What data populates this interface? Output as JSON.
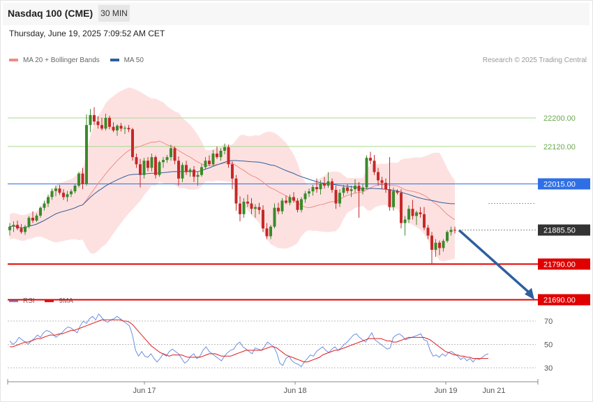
{
  "header": {
    "instrument": "Nasdaq 100 (CME)",
    "timeframe": "30 MIN",
    "timestamp": "Thursday, June 19, 2025 7:09:52 AM CET"
  },
  "legend": {
    "price": [
      {
        "label": "MA 20 + Bollinger Bands",
        "color": "#f28b82"
      },
      {
        "label": "MA 50",
        "color": "#2e5f9e"
      }
    ],
    "rsi": [
      {
        "label": "RSI",
        "color": "#6b8fe0"
      },
      {
        "label": "9MA",
        "color": "#e31a1c"
      }
    ]
  },
  "copyright": "Research © 2025 Trading Central",
  "colors": {
    "bull": "#3a8a2a",
    "bear": "#c62828",
    "bands_fill": "#fde1e1",
    "ma20": "#f28b82",
    "ma50": "#2e5f9e",
    "resistance": "#a6d98c",
    "support": "#e00000",
    "pivot": "#2f6fe6",
    "last": "#333333",
    "arrow": "#2e5f9e",
    "rsi": "#6b8fe0",
    "rsi_ma": "#e31a1c"
  },
  "chart_data": [
    {
      "type": "candlestick",
      "ylim": [
        21640,
        22290
      ],
      "x_ticks": [
        "Jun 17",
        "Jun 18",
        "Jun 19",
        "Jun 21"
      ],
      "levels": [
        {
          "label": "22200.00",
          "value": 22200,
          "role": "resistance"
        },
        {
          "label": "22120.00",
          "value": 22120,
          "role": "resistance"
        },
        {
          "label": "22015.00",
          "value": 22015,
          "role": "pivot"
        },
        {
          "label": "21885.50",
          "value": 21885.5,
          "role": "last"
        },
        {
          "label": "21790.00",
          "value": 21790,
          "role": "support"
        },
        {
          "label": "21690.00",
          "value": 21690,
          "role": "support"
        }
      ],
      "forecast": {
        "from": 21885,
        "to": 21690,
        "direction": "down"
      },
      "ohlc": [
        [
          21885,
          21905,
          21870,
          21895
        ],
        [
          21895,
          21910,
          21880,
          21900
        ],
        [
          21900,
          21912,
          21885,
          21890
        ],
        [
          21890,
          21902,
          21875,
          21880
        ],
        [
          21880,
          21900,
          21872,
          21895
        ],
        [
          21895,
          21925,
          21890,
          21920
        ],
        [
          21920,
          21938,
          21905,
          21912
        ],
        [
          21912,
          21932,
          21908,
          21926
        ],
        [
          21926,
          21952,
          21920,
          21948
        ],
        [
          21948,
          21968,
          21940,
          21960
        ],
        [
          21960,
          21985,
          21950,
          21978
        ],
        [
          21978,
          22002,
          21970,
          21995
        ],
        [
          21995,
          22010,
          21980,
          22002
        ],
        [
          22002,
          22012,
          21984,
          21990
        ],
        [
          21990,
          22000,
          21970,
          21978
        ],
        [
          21978,
          21995,
          21965,
          21986
        ],
        [
          21986,
          22000,
          21978,
          21994
        ],
        [
          21994,
          22015,
          21988,
          22010
        ],
        [
          22010,
          22048,
          22005,
          22044
        ],
        [
          22044,
          22060,
          22000,
          22015
        ],
        [
          22015,
          22210,
          22010,
          22180
        ],
        [
          22180,
          22225,
          22160,
          22208
        ],
        [
          22208,
          22230,
          22180,
          22190
        ],
        [
          22190,
          22205,
          22170,
          22180
        ],
        [
          22180,
          22200,
          22165,
          22170
        ],
        [
          22170,
          22212,
          22165,
          22200
        ],
        [
          22200,
          22206,
          22168,
          22175
        ],
        [
          22175,
          22188,
          22160,
          22165
        ],
        [
          22165,
          22182,
          22150,
          22178
        ],
        [
          22178,
          22186,
          22162,
          22170
        ],
        [
          22170,
          22178,
          22155,
          22172
        ],
        [
          22172,
          22180,
          22160,
          22168
        ],
        [
          22168,
          22172,
          22080,
          22090
        ],
        [
          22090,
          22100,
          22060,
          22070
        ],
        [
          22070,
          22085,
          22005,
          22040
        ],
        [
          22040,
          22088,
          22030,
          22080
        ],
        [
          22080,
          22090,
          22050,
          22060
        ],
        [
          22060,
          22100,
          22050,
          22090
        ],
        [
          22090,
          22095,
          22030,
          22040
        ],
        [
          22040,
          22080,
          22035,
          22076
        ],
        [
          22076,
          22090,
          22060,
          22082
        ],
        [
          22082,
          22096,
          22074,
          22090
        ],
        [
          22090,
          22125,
          22080,
          22115
        ],
        [
          22115,
          22120,
          22070,
          22080
        ],
        [
          22080,
          22092,
          22010,
          22030
        ],
        [
          22030,
          22075,
          22020,
          22068
        ],
        [
          22068,
          22080,
          22040,
          22048
        ],
        [
          22048,
          22060,
          22035,
          22055
        ],
        [
          22055,
          22065,
          22020,
          22035
        ],
        [
          22035,
          22050,
          22010,
          22040
        ],
        [
          22040,
          22070,
          22035,
          22062
        ],
        [
          22062,
          22090,
          22055,
          22080
        ],
        [
          22080,
          22095,
          22065,
          22070
        ],
        [
          22070,
          22110,
          22065,
          22100
        ],
        [
          22100,
          22120,
          22085,
          22090
        ],
        [
          22090,
          22115,
          22080,
          22108
        ],
        [
          22108,
          22128,
          22098,
          22118
        ],
        [
          22118,
          22125,
          22060,
          22070
        ],
        [
          22070,
          22078,
          22000,
          22030
        ],
        [
          22030,
          22040,
          21940,
          21960
        ],
        [
          21960,
          21980,
          21910,
          21930
        ],
        [
          21930,
          21975,
          21920,
          21965
        ],
        [
          21965,
          21985,
          21950,
          21960
        ],
        [
          21960,
          21975,
          21930,
          21945
        ],
        [
          21945,
          21958,
          21920,
          21950
        ],
        [
          21950,
          21962,
          21930,
          21942
        ],
        [
          21942,
          21955,
          21880,
          21890
        ],
        [
          21890,
          21905,
          21860,
          21868
        ],
        [
          21868,
          21900,
          21860,
          21895
        ],
        [
          21895,
          21960,
          21890,
          21948
        ],
        [
          21948,
          21962,
          21930,
          21938
        ],
        [
          21938,
          21975,
          21930,
          21968
        ],
        [
          21968,
          21982,
          21958,
          21962
        ],
        [
          21962,
          21985,
          21955,
          21978
        ],
        [
          21978,
          21992,
          21962,
          21968
        ],
        [
          21968,
          21975,
          21935,
          21942
        ],
        [
          21942,
          21978,
          21935,
          21972
        ],
        [
          21972,
          21995,
          21962,
          21988
        ],
        [
          21988,
          22002,
          21978,
          21994
        ],
        [
          21994,
          22012,
          21982,
          22006
        ],
        [
          22006,
          22030,
          21990,
          22000
        ],
        [
          22000,
          22025,
          21985,
          22016
        ],
        [
          22016,
          22034,
          22002,
          22010
        ],
        [
          22010,
          22048,
          22004,
          22022
        ],
        [
          22022,
          22030,
          21990,
          21998
        ],
        [
          21998,
          22010,
          21945,
          21960
        ],
        [
          21960,
          22000,
          21950,
          21990
        ],
        [
          21990,
          22012,
          21980,
          22005
        ],
        [
          22005,
          22015,
          21988,
          21995
        ],
        [
          21995,
          22010,
          21978,
          22000
        ],
        [
          22000,
          22028,
          21990,
          22010
        ],
        [
          22010,
          22020,
          21920,
          21995
        ],
        [
          21995,
          22015,
          21985,
          22005
        ],
        [
          22005,
          22095,
          22000,
          22088
        ],
        [
          22088,
          22105,
          22070,
          22080
        ],
        [
          22080,
          22096,
          22040,
          22048
        ],
        [
          22048,
          22060,
          22010,
          22025
        ],
        [
          22025,
          22035,
          22000,
          22018
        ],
        [
          22018,
          22030,
          21990,
          22000
        ],
        [
          22000,
          22090,
          21940,
          21950
        ],
        [
          21950,
          22005,
          21940,
          21995
        ],
        [
          21995,
          22000,
          21985,
          21990
        ],
        [
          21990,
          22000,
          21890,
          21905
        ],
        [
          21905,
          21925,
          21870,
          21915
        ],
        [
          21915,
          21955,
          21905,
          21945
        ],
        [
          21945,
          21970,
          21915,
          21925
        ],
        [
          21925,
          21940,
          21900,
          21935
        ],
        [
          21935,
          21950,
          21920,
          21930
        ],
        [
          21930,
          21950,
          21885,
          21892
        ],
        [
          21892,
          21900,
          21860,
          21870
        ],
        [
          21870,
          21880,
          21790,
          21830
        ],
        [
          21830,
          21860,
          21810,
          21850
        ],
        [
          21850,
          21856,
          21815,
          21835
        ],
        [
          21835,
          21860,
          21825,
          21855
        ],
        [
          21855,
          21885,
          21850,
          21880
        ],
        [
          21880,
          21895,
          21870,
          21886
        ],
        [
          21886,
          21895,
          21876,
          21885
        ]
      ]
    },
    {
      "type": "line",
      "title": "RSI",
      "ylim": [
        20,
        82
      ],
      "y_ticks": [
        70,
        50,
        30
      ],
      "series": [
        {
          "name": "RSI",
          "values": [
            53,
            50,
            52,
            56,
            54,
            52,
            50,
            53,
            55,
            58,
            56,
            60,
            62,
            61,
            59,
            56,
            58,
            60,
            63,
            65,
            64,
            62,
            60,
            66,
            70,
            68,
            72,
            74,
            71,
            76,
            73,
            70,
            69,
            71,
            72,
            74,
            72,
            70,
            68,
            66,
            58,
            45,
            40,
            44,
            40,
            39,
            42,
            38,
            35,
            38,
            42,
            40,
            44,
            46,
            44,
            42,
            38,
            34,
            36,
            40,
            42,
            38,
            40,
            45,
            48,
            44,
            42,
            40,
            38,
            36,
            40,
            43,
            45,
            46,
            50,
            52,
            48,
            46,
            44,
            42,
            47,
            46,
            45,
            48,
            52,
            50,
            48,
            43,
            34,
            32,
            38,
            40,
            36,
            34,
            33,
            31,
            35,
            38,
            41,
            40,
            44,
            46,
            48,
            45,
            43,
            46,
            48,
            45,
            47,
            50,
            52,
            55,
            58,
            59,
            56,
            54,
            52,
            56,
            60,
            54,
            52,
            50,
            48,
            46,
            47,
            56,
            58,
            59,
            57,
            54,
            55,
            56,
            57,
            58,
            59,
            54,
            53,
            45,
            40,
            41,
            39,
            42,
            40,
            43,
            44,
            42,
            40,
            37,
            39,
            36,
            38,
            35,
            38,
            37,
            39,
            41,
            42
          ]
        },
        {
          "name": "9MA",
          "values": [
            48,
            48,
            49,
            50,
            51,
            52,
            52,
            53,
            54,
            55,
            55,
            56,
            57,
            58,
            58,
            58,
            59,
            59,
            60,
            61,
            62,
            62,
            63,
            64,
            65,
            66,
            67,
            68,
            69,
            70,
            71,
            71,
            71,
            71,
            71,
            71,
            71,
            70,
            70,
            69,
            67,
            64,
            61,
            58,
            55,
            52,
            49,
            47,
            45,
            43,
            42,
            41,
            40,
            41,
            41,
            41,
            41,
            40,
            39,
            39,
            39,
            39,
            39,
            40,
            41,
            42,
            42,
            42,
            41,
            40,
            40,
            40,
            40,
            41,
            42,
            43,
            44,
            45,
            45,
            45,
            45,
            45,
            45,
            46,
            47,
            48,
            48,
            47,
            45,
            43,
            41,
            40,
            39,
            38,
            37,
            36,
            35,
            35,
            36,
            37,
            38,
            39,
            41,
            42,
            43,
            44,
            45,
            45,
            46,
            47,
            48,
            49,
            50,
            51,
            52,
            53,
            54,
            55,
            55,
            55,
            55,
            55,
            54,
            53,
            53,
            52,
            52,
            53,
            54,
            55,
            56,
            56,
            56,
            56,
            56,
            56,
            55,
            54,
            52,
            50,
            48,
            46,
            44,
            43,
            42,
            41,
            41,
            40,
            40,
            39,
            39,
            38,
            38,
            38,
            38,
            38,
            38
          ]
        }
      ]
    }
  ]
}
